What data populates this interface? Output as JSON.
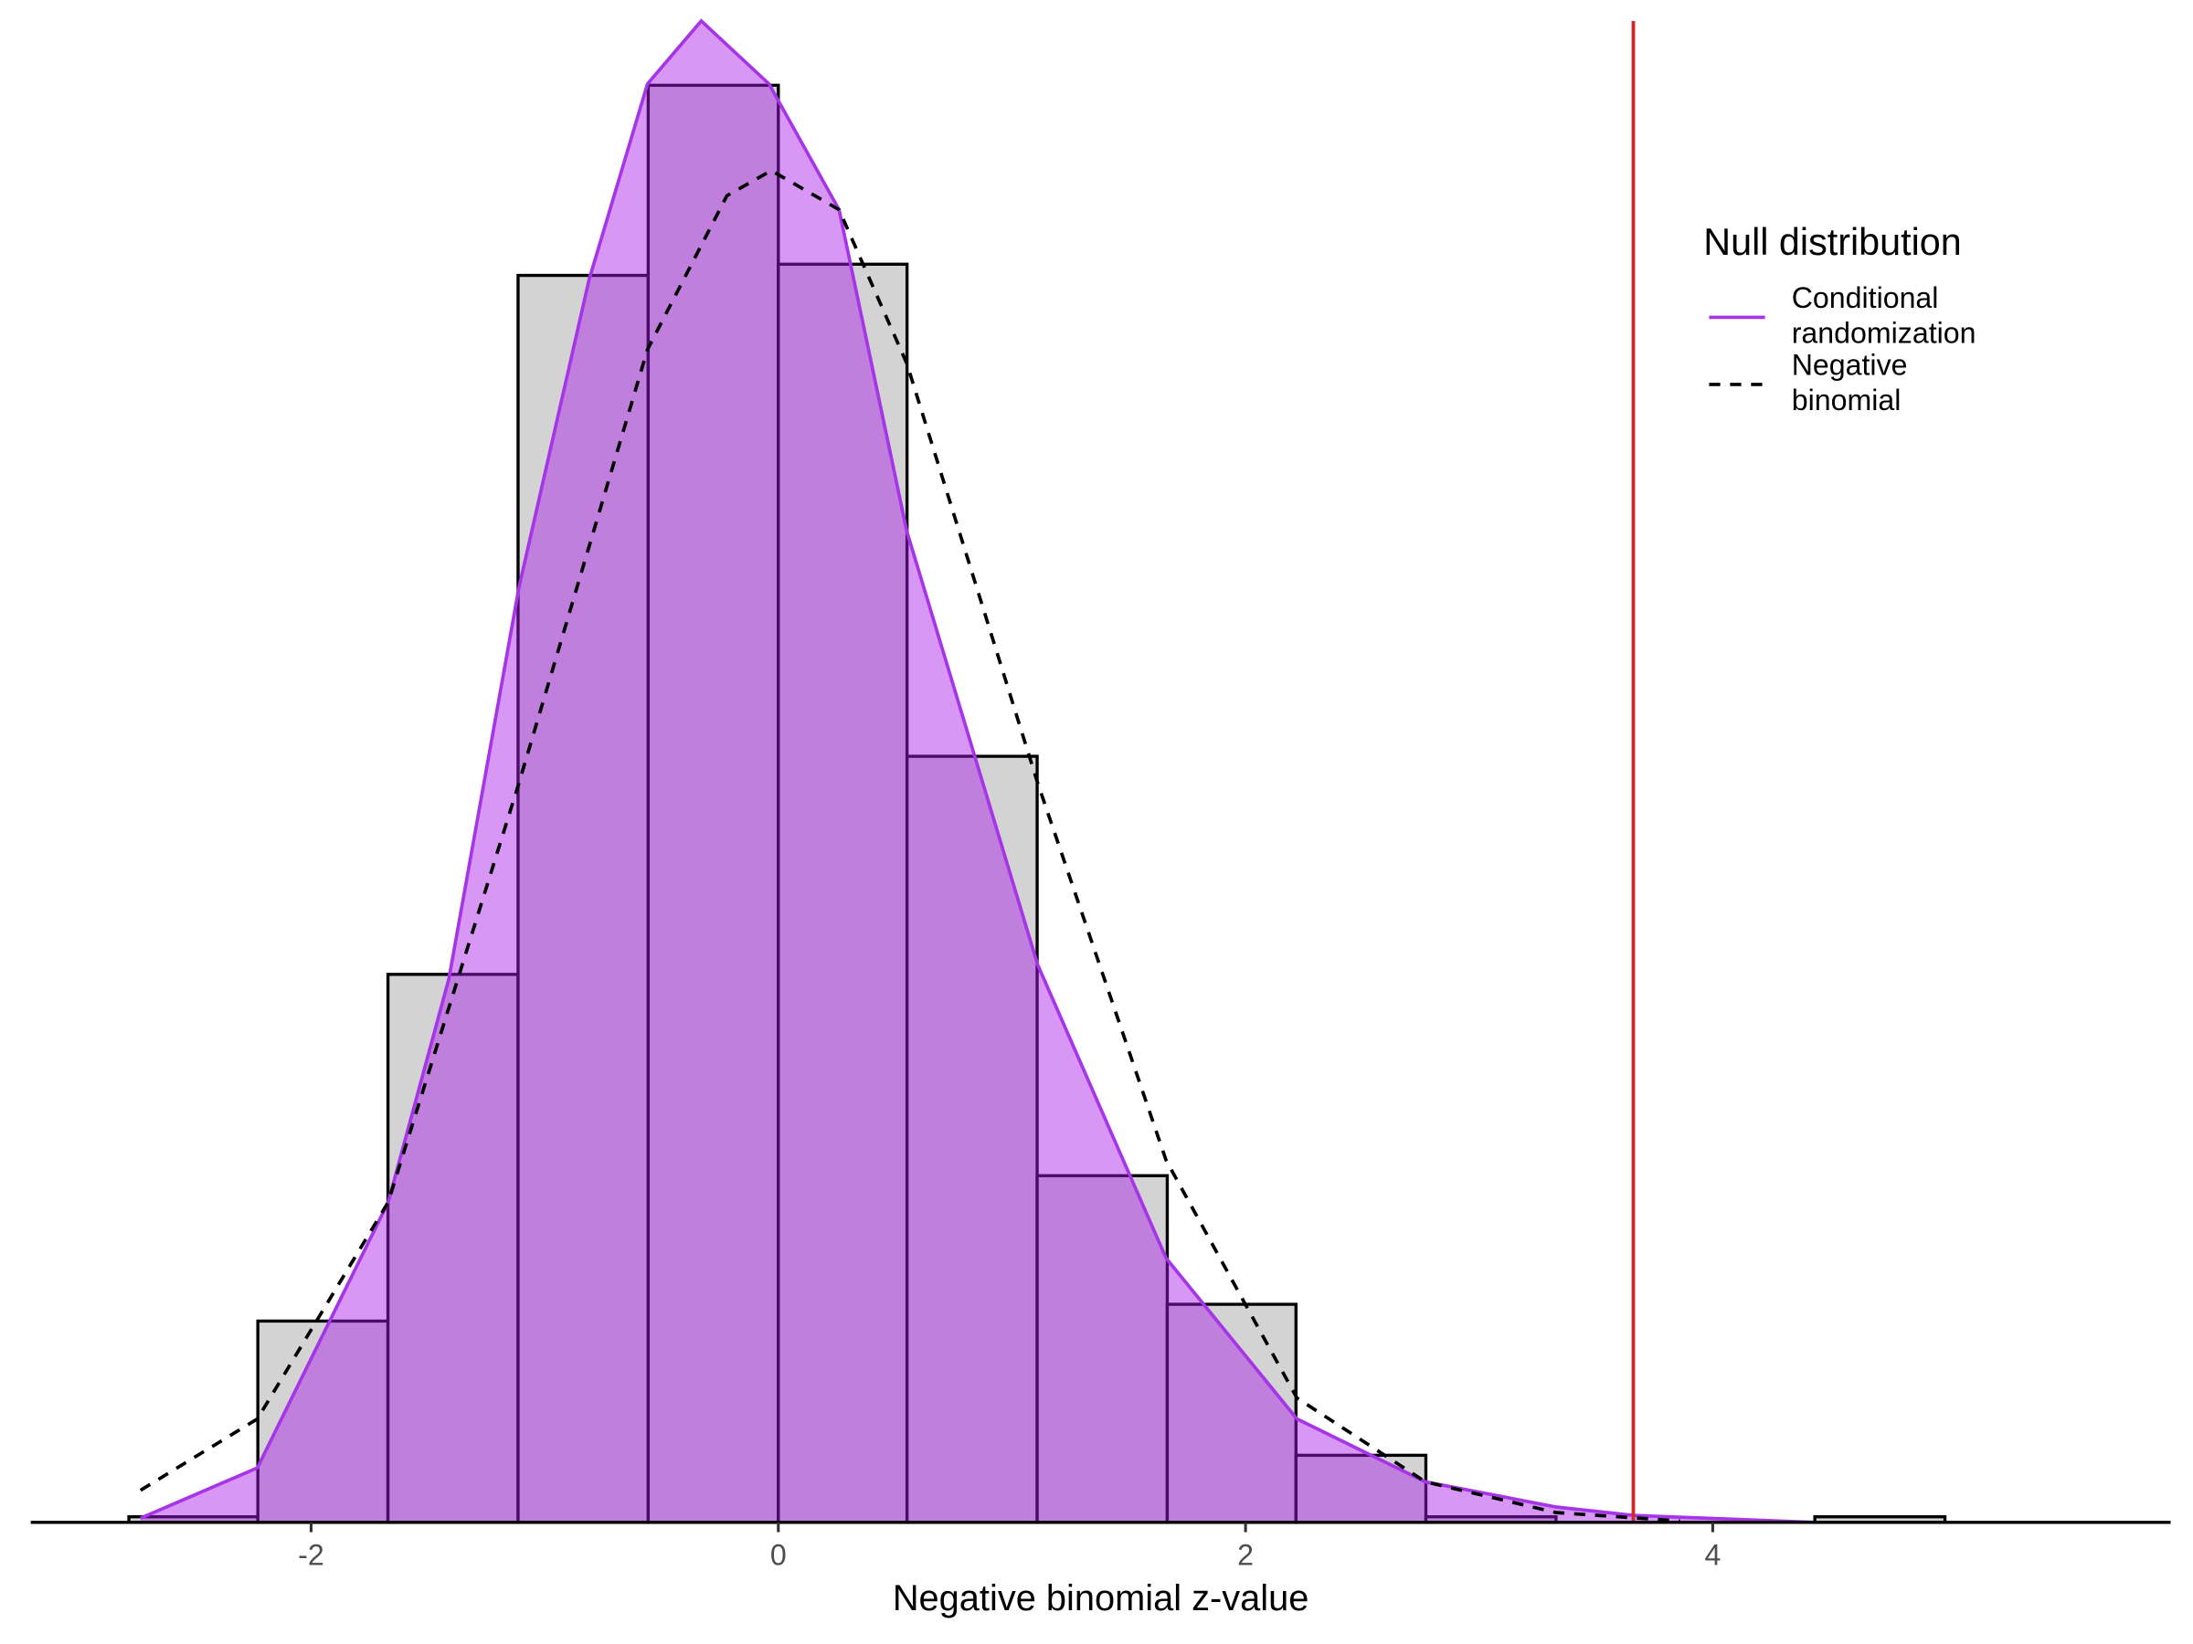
{
  "chart_data": {
    "type": "histogram",
    "x_label": "Negative binomial z-value",
    "bins": [
      -2.78,
      -2.228,
      -1.671,
      -1.114,
      -0.557,
      0,
      0.551,
      1.108,
      1.665,
      2.216,
      2.772,
      3.329,
      3.88,
      4.437,
      4.994
    ],
    "counts": [
      1,
      36,
      98,
      223,
      257,
      225,
      137,
      62,
      39,
      12,
      1,
      0,
      0,
      1
    ],
    "bar_color": "#d3d3d3",
    "xlim": [
      -3.2,
      5.96
    ],
    "ylim": [
      0,
      268.5
    ],
    "xticks": [
      -2,
      0,
      2,
      4
    ],
    "reference_line": {
      "x": 3.66,
      "color": "#d62728"
    },
    "legend_title": "Null distribution",
    "legend": "top-right",
    "series": [
      {
        "name": "Conditional randomization",
        "color": "#a535e6",
        "fill": "#a816e9",
        "style": "solid",
        "x": [
          -2.73,
          -2.23,
          -1.67,
          -1.41,
          -1.11,
          -0.81,
          -0.56,
          -0.33,
          -0.04,
          0.26,
          0.55,
          1.11,
          1.66,
          2.22,
          2.77,
          3.33,
          3.66,
          4.44
        ],
        "values": [
          0.75,
          9.75,
          57.25,
          97.25,
          167.25,
          222.25,
          257.25,
          268.5,
          257.25,
          234.75,
          177.25,
          99.75,
          47.25,
          18.5,
          7.25,
          2.75,
          1.25,
          0
        ]
      },
      {
        "name": "Negative binomial",
        "color": "#000000",
        "style": "dashed",
        "x": [
          -2.73,
          -2.23,
          -1.67,
          -1.11,
          -0.56,
          -0.22,
          -0.03,
          0.26,
          0.55,
          1.11,
          1.66,
          2.22,
          2.77,
          3.33,
          3.86
        ],
        "values": [
          5.75,
          18.5,
          57.25,
          132.25,
          209.75,
          237.25,
          241.75,
          234.75,
          207.25,
          132.25,
          64.75,
          22.25,
          7.25,
          1.75,
          0.25
        ]
      }
    ]
  }
}
